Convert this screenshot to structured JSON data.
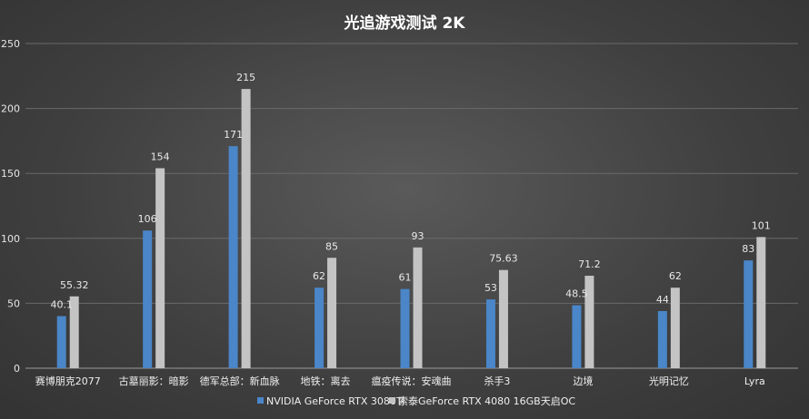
{
  "chart_data": {
    "type": "bar",
    "title": "光追游戏测试  2K",
    "categories": [
      "赛博朋克2077",
      "古墓丽影：暗影",
      "德军总部：新血脉",
      "地铁：离去",
      "瘟疫传说：安魂曲",
      "杀手3",
      "边境",
      "光明记忆",
      "Lyra"
    ],
    "series": [
      {
        "name": "NVIDIA GeForce RTX 3080Ti",
        "color": "#4a86c8",
        "values": [
          40.1,
          106,
          171,
          62,
          61,
          53,
          48.5,
          44,
          83
        ],
        "labels": [
          "40.1",
          "106",
          "171",
          "62",
          "61",
          "53",
          "48.5",
          "44",
          "83"
        ]
      },
      {
        "name": "索泰GeForce RTX 4080 16GB天启OC",
        "color": "#c4c4c4",
        "values": [
          55.32,
          154,
          215,
          85,
          93,
          75.63,
          71.2,
          62,
          101
        ],
        "labels": [
          "55.32",
          "154",
          "215",
          "85",
          "93",
          "75.63",
          "71.2",
          "62",
          "101"
        ]
      }
    ],
    "ylim": [
      0,
      250
    ],
    "yticks": [
      "0",
      "50",
      "100",
      "150",
      "200",
      "250"
    ],
    "grid": true,
    "legend_position": "bottom"
  }
}
